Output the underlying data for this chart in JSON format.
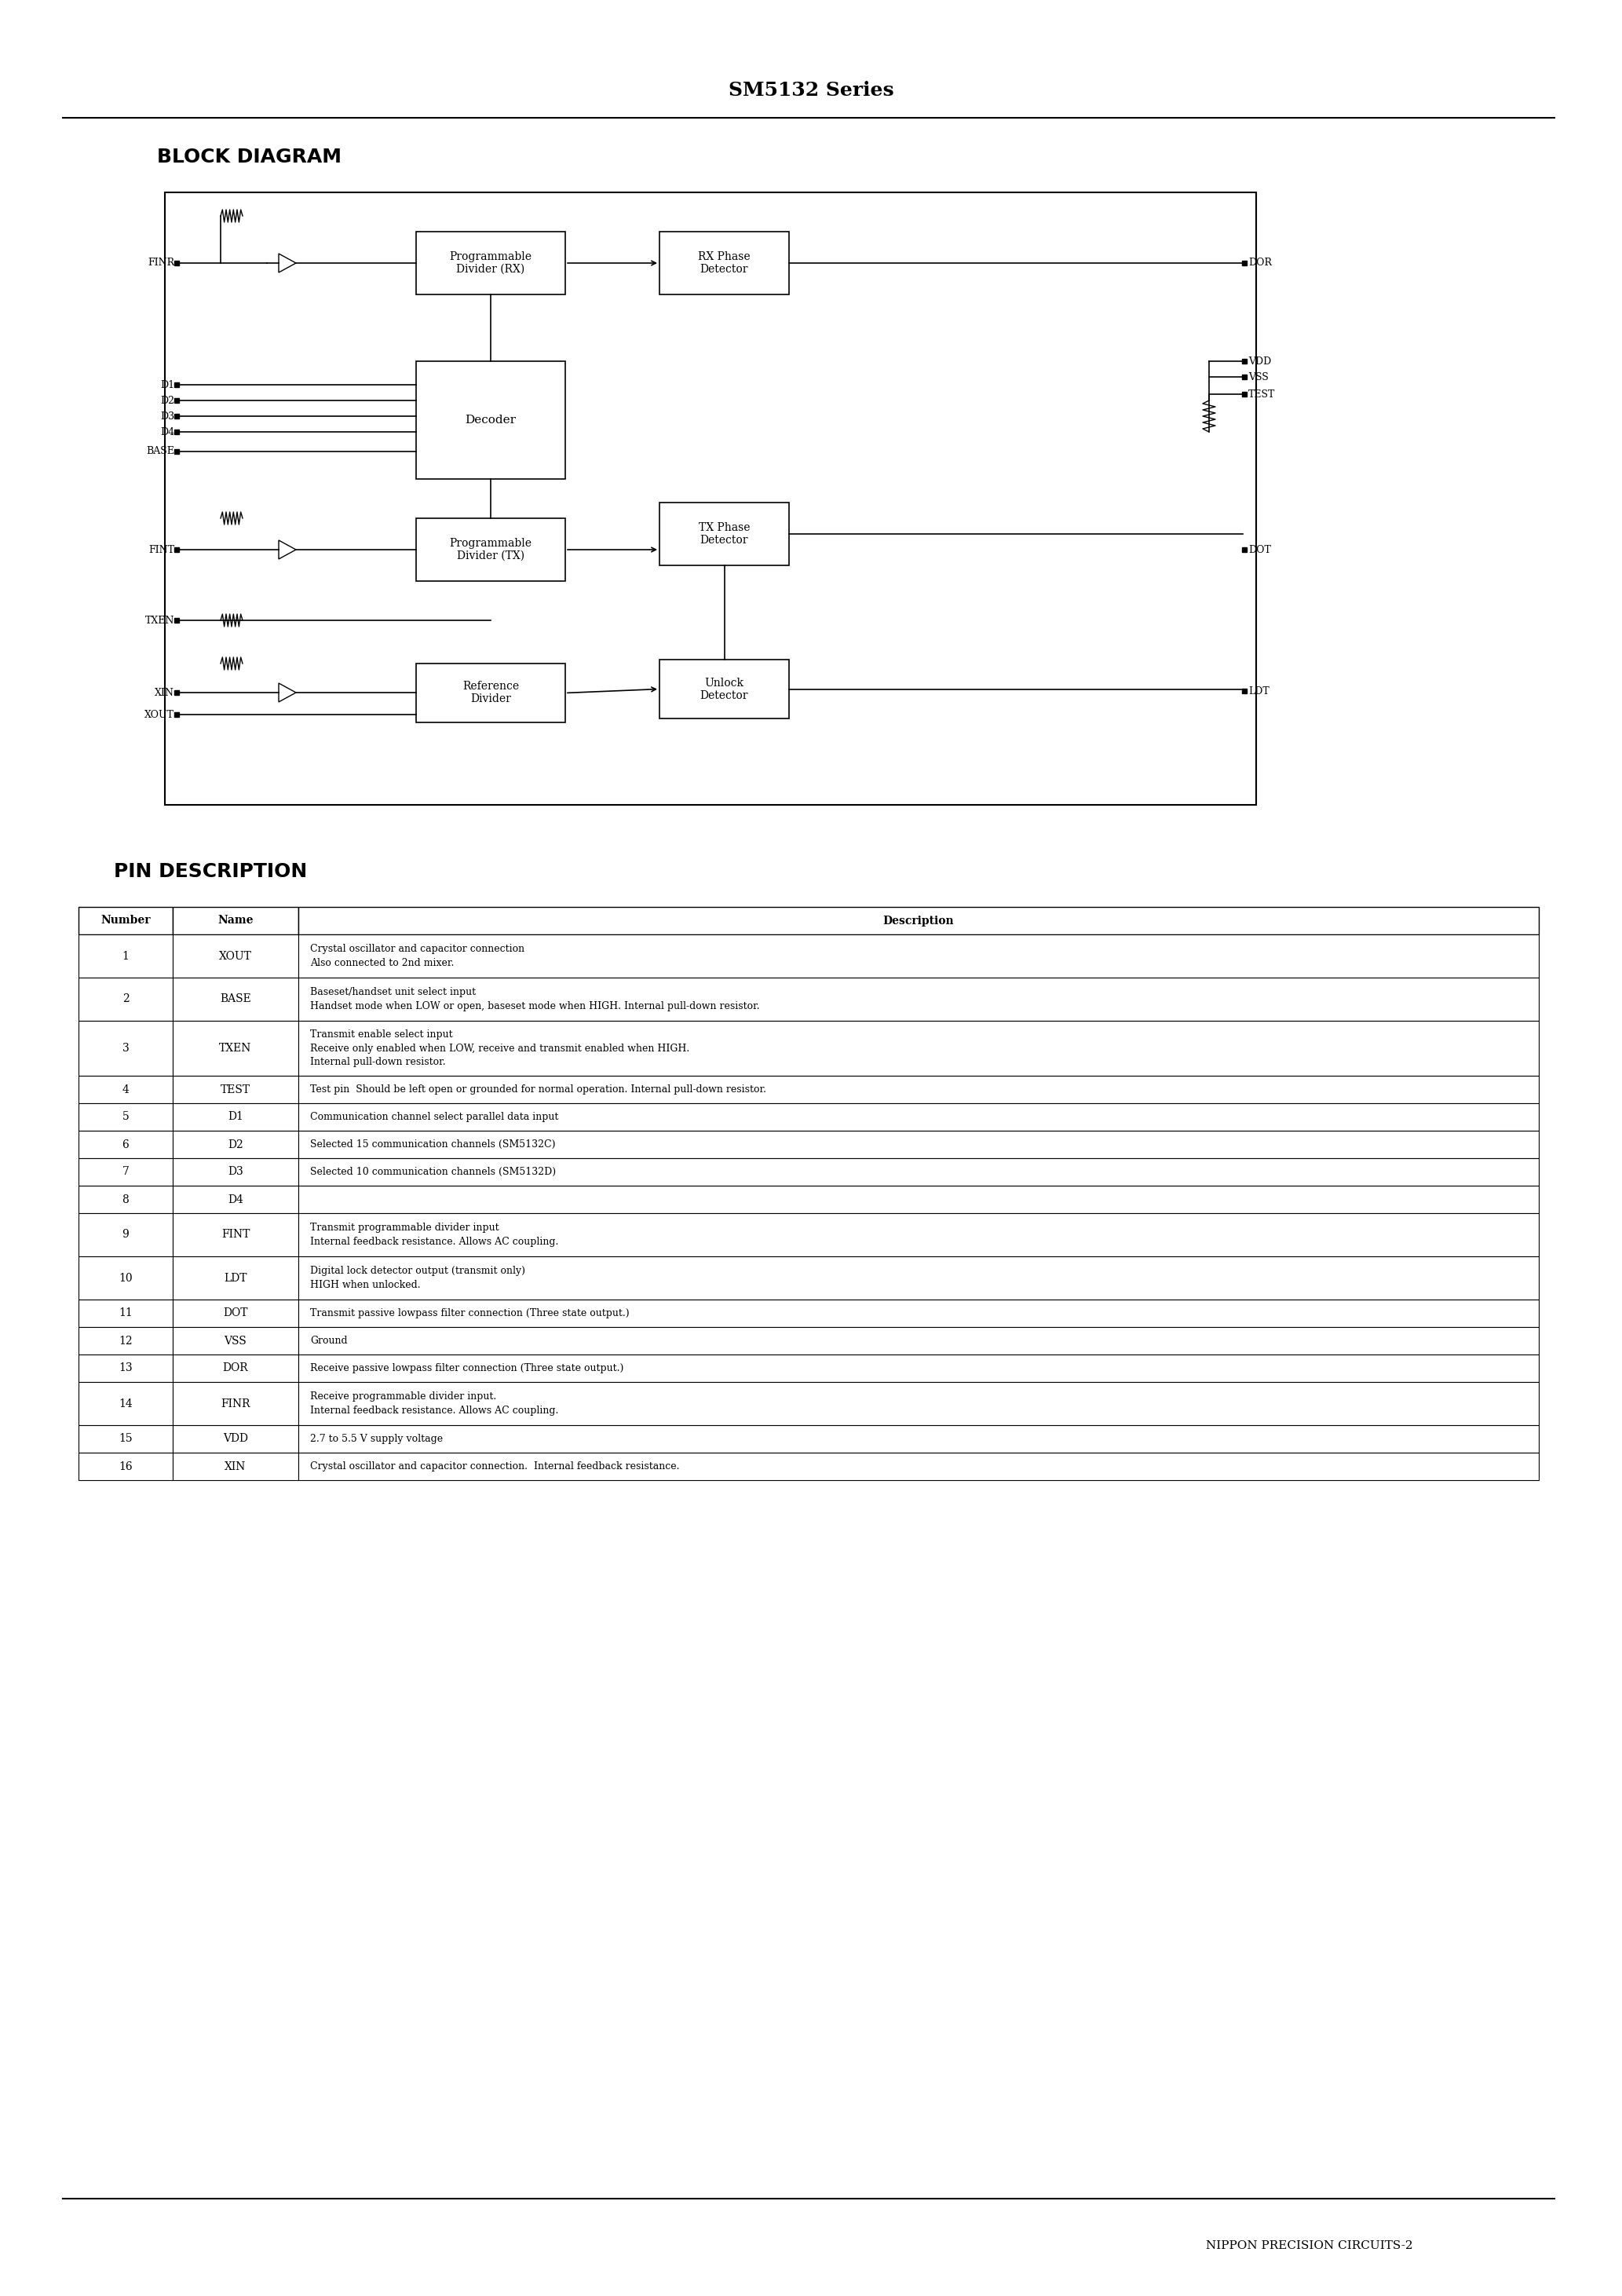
{
  "page_title": "SM5132 Series",
  "section1_title": "BLOCK DIAGRAM",
  "section2_title": "PIN DESCRIPTION",
  "footer_text": "NIPPON PRECISION CIRCUITS-2",
  "background_color": "#ffffff",
  "table_headers": [
    "Number",
    "Name",
    "Description"
  ],
  "table_data": [
    [
      "1",
      "XOUT",
      "Crystal oscillator and capacitor connection\nAlso connected to 2nd mixer."
    ],
    [
      "2",
      "BASE",
      "Baseset/handset unit select input\nHandset mode when LOW or open, baseset mode when HIGH. Internal pull-down resistor."
    ],
    [
      "3",
      "TXEN",
      "Transmit enable select input\nReceive only enabled when LOW, receive and transmit enabled when HIGH.\nInternal pull-down resistor."
    ],
    [
      "4",
      "TEST",
      "Test pin  Should be left open or grounded for normal operation. Internal pull-down resistor."
    ],
    [
      "5",
      "D1",
      "Communication channel select parallel data input"
    ],
    [
      "6",
      "D2",
      "Selected 15 communication channels (SM5132C)"
    ],
    [
      "7",
      "D3",
      "Selected 10 communication channels (SM5132D)"
    ],
    [
      "8",
      "D4",
      ""
    ],
    [
      "9",
      "FINT",
      "Transmit programmable divider input\nInternal feedback resistance. Allows AC coupling."
    ],
    [
      "10",
      "LDT",
      "Digital lock detector output (transmit only)\nHIGH when unlocked."
    ],
    [
      "11",
      "DOT",
      "Transmit passive lowpass filter connection (Three state output.)"
    ],
    [
      "12",
      "VSS",
      "Ground"
    ],
    [
      "13",
      "DOR",
      "Receive passive lowpass filter connection (Three state output.)"
    ],
    [
      "14",
      "FINR",
      "Receive programmable divider input.\nInternal feedback resistance. Allows AC coupling."
    ],
    [
      "15",
      "VDD",
      "2.7 to 5.5 V supply voltage"
    ],
    [
      "16",
      "XIN",
      "Crystal oscillator and capacitor connection.  Internal feedback resistance."
    ]
  ]
}
